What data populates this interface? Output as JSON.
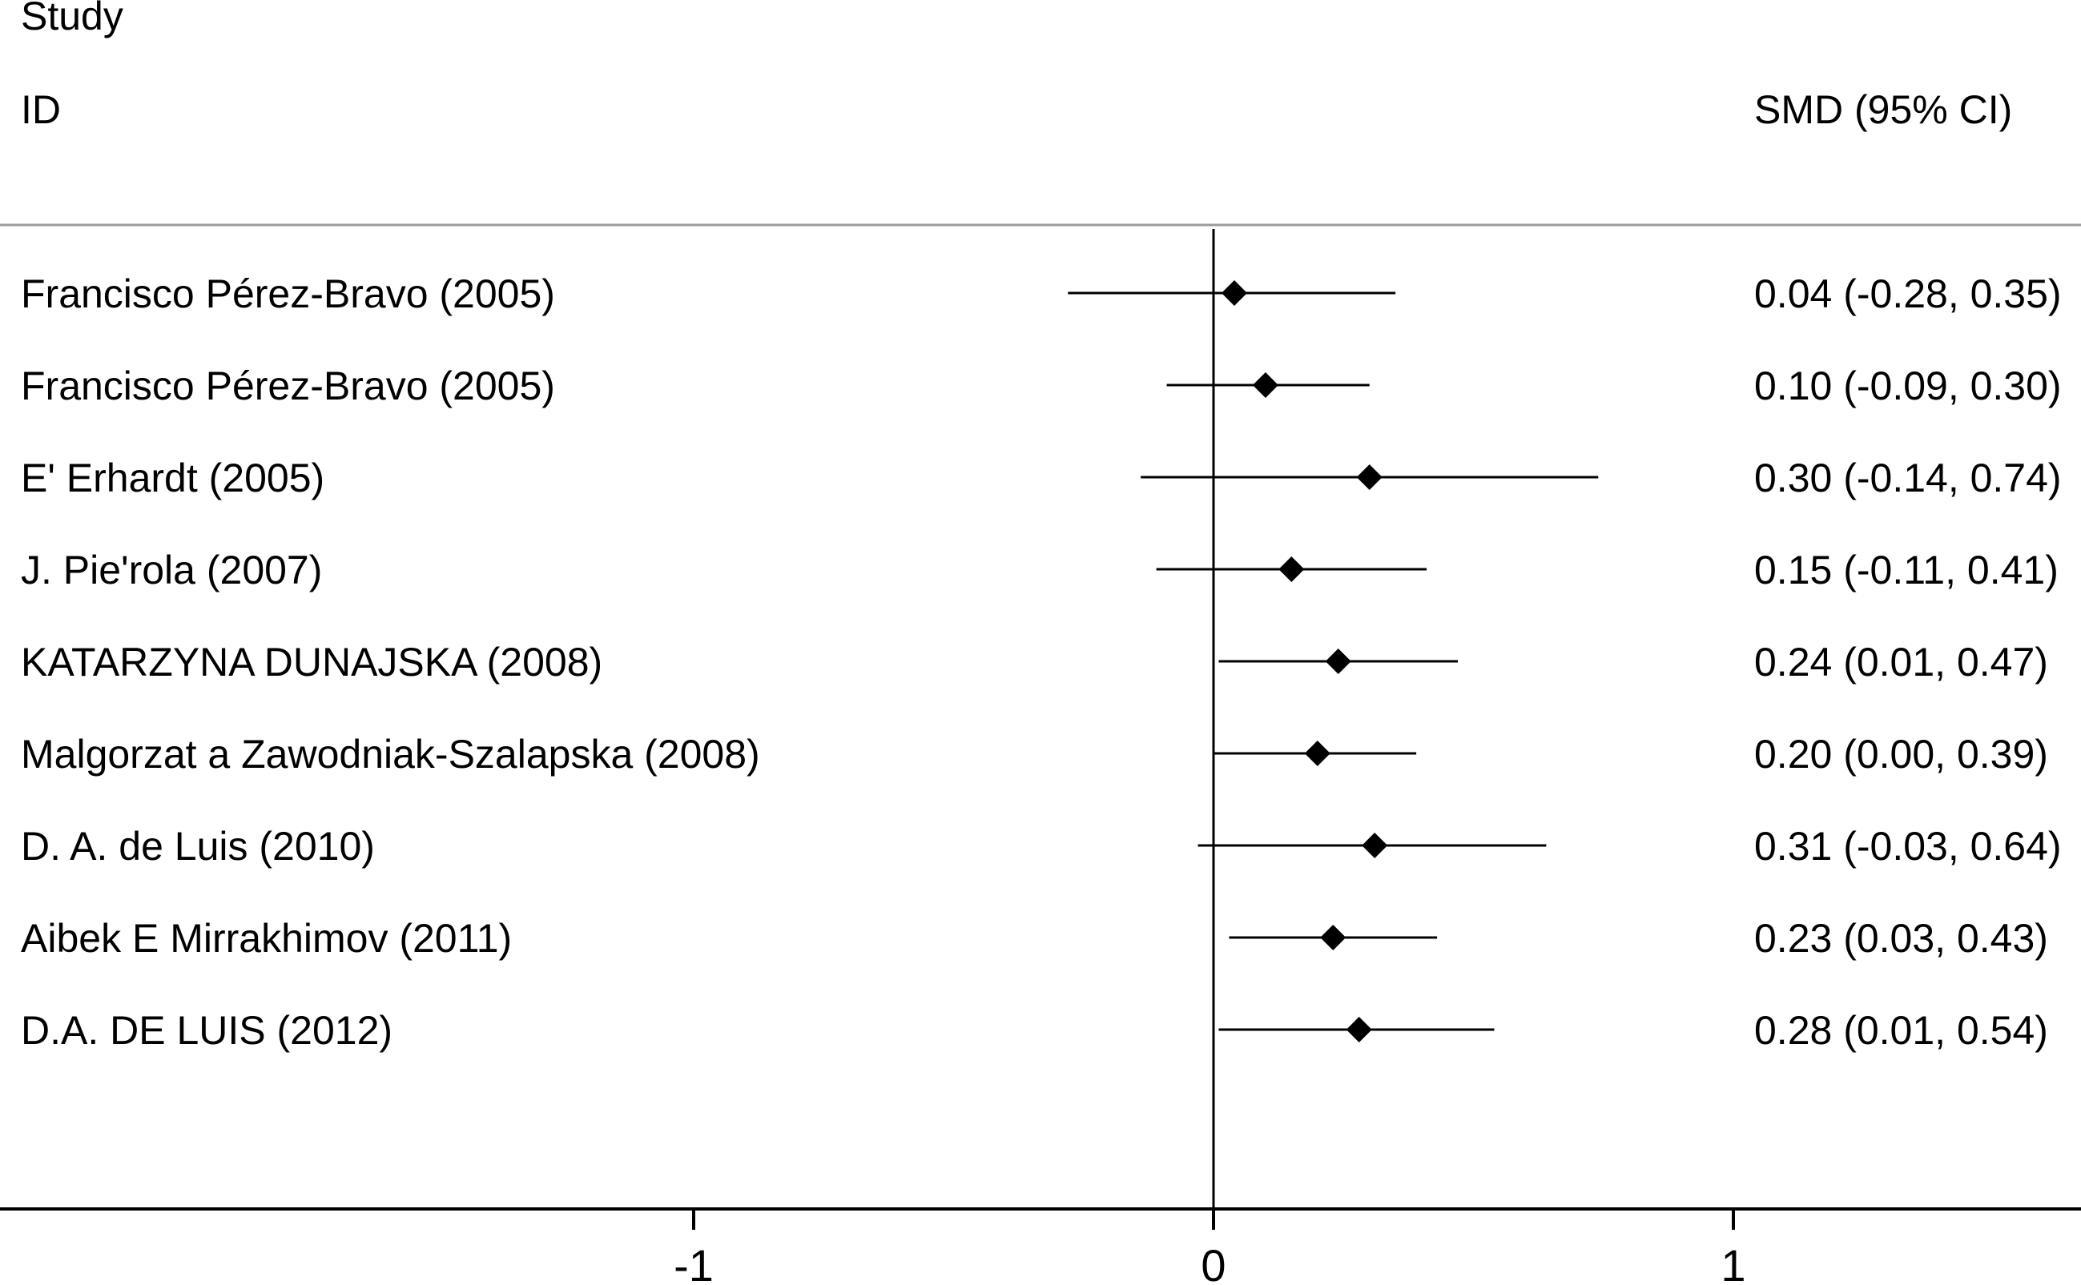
{
  "chart_data": {
    "type": "forest",
    "header": {
      "study_line1": "Study",
      "study_line2": "ID",
      "estimate": "SMD (95% CI)"
    },
    "studies": [
      {
        "label": "Francisco Pérez-Bravo (2005)",
        "smd": 0.04,
        "ci_low": -0.28,
        "ci_high": 0.35,
        "estimate_text": "0.04 (-0.28, 0.35)"
      },
      {
        "label": "Francisco Pérez-Bravo (2005)",
        "smd": 0.1,
        "ci_low": -0.09,
        "ci_high": 0.3,
        "estimate_text": "0.10 (-0.09, 0.30)"
      },
      {
        "label": "E' Erhardt (2005)",
        "smd": 0.3,
        "ci_low": -0.14,
        "ci_high": 0.74,
        "estimate_text": "0.30 (-0.14, 0.74)"
      },
      {
        "label": "J. Pie'rola (2007)",
        "smd": 0.15,
        "ci_low": -0.11,
        "ci_high": 0.41,
        "estimate_text": "0.15 (-0.11, 0.41)"
      },
      {
        "label": "KATARZYNA DUNAJSKA (2008)",
        "smd": 0.24,
        "ci_low": 0.01,
        "ci_high": 0.47,
        "estimate_text": "0.24 (0.01, 0.47)"
      },
      {
        "label": "Malgorzat a Zawodniak-Szalapska (2008)",
        "smd": 0.2,
        "ci_low": 0.0,
        "ci_high": 0.39,
        "estimate_text": "0.20 (0.00, 0.39)"
      },
      {
        "label": "D. A. de Luis (2010)",
        "smd": 0.31,
        "ci_low": -0.03,
        "ci_high": 0.64,
        "estimate_text": "0.31 (-0.03, 0.64)"
      },
      {
        "label": "Aibek E Mirrakhimov (2011)",
        "smd": 0.23,
        "ci_low": 0.03,
        "ci_high": 0.43,
        "estimate_text": "0.23 (0.03, 0.43)"
      },
      {
        "label": "D.A. DE LUIS (2012)",
        "smd": 0.28,
        "ci_low": 0.01,
        "ci_high": 0.54,
        "estimate_text": "0.28 (0.01, 0.54)"
      }
    ],
    "x_ticks": [
      {
        "value": -1,
        "label": "-1"
      },
      {
        "value": 0,
        "label": "0"
      },
      {
        "value": 1,
        "label": "1"
      }
    ],
    "xlim": [
      -2.33,
      1.66
    ],
    "null_line": 0,
    "grid": false,
    "marker": "diamond"
  }
}
